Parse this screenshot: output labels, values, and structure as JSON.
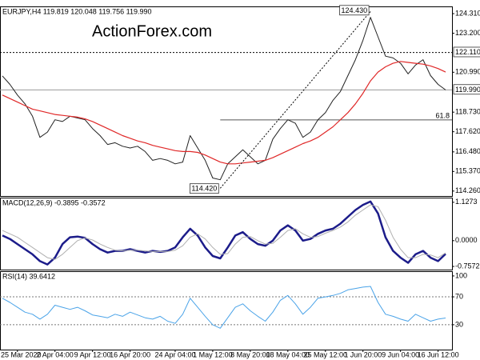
{
  "chart_data": [
    {
      "type": "line",
      "title": "EURJPY,H4  119.819 120.048 119.756 119.990",
      "watermark": "ActionForex.com",
      "ylim": [
        113.98,
        124.72
      ],
      "yticks": [
        {
          "value": 124.31,
          "label": "124.310"
        },
        {
          "value": 123.2,
          "label": "123.200"
        },
        {
          "value": 120.99,
          "label": "120.990"
        },
        {
          "value": 118.73,
          "label": "118.730"
        },
        {
          "value": 117.62,
          "label": "117.620"
        },
        {
          "value": 116.48,
          "label": "116.480"
        },
        {
          "value": 115.37,
          "label": "115.370"
        },
        {
          "value": 114.26,
          "label": "114.260"
        }
      ],
      "levels": [
        {
          "value": 122.11,
          "label": "122.110",
          "style": "dotted"
        },
        {
          "value": 119.99,
          "label": "119.990",
          "style": "solid"
        }
      ],
      "annotations": [
        {
          "value": 124.43,
          "label": "124.430"
        },
        {
          "value": 114.42,
          "label": "114.420"
        }
      ],
      "fib": {
        "value": 118.29,
        "label": "61.8"
      },
      "series": [
        {
          "color": "#222222",
          "width": 1,
          "values": [
            120.78,
            120.3,
            119.7,
            119.2,
            118.5,
            117.3,
            117.6,
            118.3,
            118.2,
            118.5,
            118.4,
            118.3,
            117.8,
            117.4,
            116.9,
            117.0,
            116.8,
            116.7,
            116.8,
            116.5,
            116.0,
            116.1,
            116.0,
            115.8,
            115.9,
            117.4,
            116.7,
            116.0,
            115.0,
            114.9,
            115.8,
            116.2,
            116.6,
            116.2,
            115.8,
            116.0,
            117.2,
            117.8,
            118.3,
            118.1,
            117.3,
            117.6,
            118.3,
            118.7,
            119.4,
            119.9,
            120.8,
            121.7,
            122.8,
            124.1,
            123.0,
            121.9,
            121.8,
            121.5,
            120.9,
            121.4,
            121.7,
            120.8,
            120.3,
            119.99
          ]
        },
        {
          "color": "#e02828",
          "width": 1.2,
          "values": [
            119.7,
            119.5,
            119.3,
            119.1,
            118.9,
            118.8,
            118.7,
            118.6,
            118.55,
            118.5,
            118.45,
            118.35,
            118.2,
            118.0,
            117.8,
            117.6,
            117.4,
            117.25,
            117.1,
            117.0,
            116.85,
            116.75,
            116.65,
            116.55,
            116.5,
            116.5,
            116.45,
            116.3,
            116.1,
            115.9,
            115.8,
            115.8,
            115.85,
            115.9,
            115.95,
            116.0,
            116.15,
            116.35,
            116.55,
            116.75,
            116.95,
            117.1,
            117.3,
            117.6,
            117.9,
            118.3,
            118.7,
            119.2,
            119.8,
            120.5,
            121.0,
            121.3,
            121.5,
            121.6,
            121.55,
            121.5,
            121.45,
            121.35,
            121.2,
            121.0
          ]
        }
      ]
    },
    {
      "type": "line",
      "title": "MACD(12,26,9) -0.3895 -0.3572",
      "ylim": [
        -0.85,
        1.265
      ],
      "yticks": [
        1.1273,
        {
          "value": 0,
          "label": "0.0000"
        },
        -0.7572
      ],
      "series": [
        {
          "color": "#1c1c8a",
          "width": 2.5,
          "values": [
            0.15,
            0.05,
            -0.1,
            -0.25,
            -0.4,
            -0.6,
            -0.7,
            -0.5,
            -0.1,
            0.1,
            0.12,
            0.08,
            -0.1,
            -0.25,
            -0.35,
            -0.3,
            -0.3,
            -0.25,
            -0.3,
            -0.35,
            -0.3,
            -0.33,
            -0.3,
            -0.2,
            0.1,
            0.35,
            0.15,
            -0.2,
            -0.45,
            -0.52,
            -0.2,
            0.15,
            0.25,
            0.05,
            -0.1,
            -0.15,
            0.0,
            0.3,
            0.45,
            0.3,
            0.0,
            0.05,
            0.2,
            0.3,
            0.35,
            0.5,
            0.7,
            0.9,
            1.05,
            1.15,
            0.8,
            0.1,
            -0.3,
            -0.5,
            -0.65,
            -0.4,
            -0.3,
            -0.5,
            -0.6,
            -0.39
          ]
        },
        {
          "color": "#b0b0b0",
          "width": 1,
          "values": [
            0.3,
            0.2,
            0.1,
            -0.05,
            -0.2,
            -0.35,
            -0.5,
            -0.55,
            -0.4,
            -0.2,
            0.0,
            0.08,
            0.02,
            -0.1,
            -0.2,
            -0.28,
            -0.3,
            -0.28,
            -0.28,
            -0.3,
            -0.32,
            -0.32,
            -0.32,
            -0.28,
            -0.15,
            0.1,
            0.2,
            0.05,
            -0.2,
            -0.4,
            -0.38,
            -0.1,
            0.1,
            0.12,
            0.0,
            -0.1,
            -0.08,
            0.1,
            0.3,
            0.35,
            0.2,
            0.1,
            0.12,
            0.22,
            0.3,
            0.4,
            0.55,
            0.75,
            0.9,
            1.05,
            1.0,
            0.6,
            0.1,
            -0.25,
            -0.5,
            -0.5,
            -0.4,
            -0.42,
            -0.5,
            -0.36
          ]
        }
      ]
    },
    {
      "type": "line",
      "title": "RSI(14) 39.6412",
      "ylim": [
        -5.7,
        106.8
      ],
      "yticks": [
        100,
        70,
        30
      ],
      "levels": [
        70,
        30
      ],
      "categories": [
        null,
        null,
        "25 Mar 2020",
        null,
        null,
        null,
        null,
        "2 Apr 04:00",
        null,
        null,
        null,
        null,
        "9 Apr 12:00",
        null,
        null,
        null,
        null,
        "16 Apr 20:00",
        null,
        null,
        null,
        null,
        null,
        "24 Apr 04:00",
        null,
        null,
        null,
        null,
        "1 May 12:00",
        null,
        null,
        null,
        null,
        "8 May 20:00",
        null,
        null,
        null,
        null,
        "18 May 04:00",
        null,
        null,
        null,
        null,
        "25 May 12:00",
        null,
        null,
        null,
        null,
        "1 Jun 20:00",
        null,
        null,
        null,
        null,
        "9 Jun 04:00",
        null,
        null,
        null,
        null,
        "16 Jun 12:00",
        null
      ],
      "series": [
        {
          "color": "#4aa3e8",
          "width": 1,
          "values": [
            68,
            62,
            55,
            48,
            45,
            38,
            45,
            58,
            55,
            52,
            55,
            50,
            44,
            42,
            40,
            45,
            42,
            48,
            44,
            40,
            38,
            42,
            35,
            32,
            45,
            68,
            55,
            42,
            30,
            25,
            40,
            55,
            60,
            50,
            42,
            35,
            48,
            65,
            72,
            60,
            45,
            55,
            68,
            70,
            72,
            75,
            80,
            82,
            84,
            85,
            62,
            45,
            42,
            38,
            35,
            45,
            40,
            35,
            38,
            39.64
          ]
        }
      ]
    }
  ]
}
